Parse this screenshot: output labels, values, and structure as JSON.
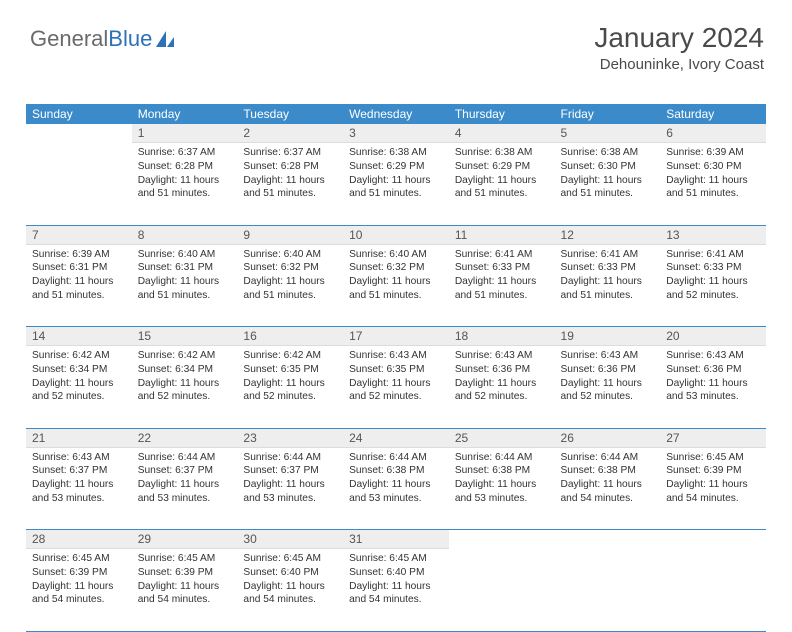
{
  "logo": {
    "text_general": "General",
    "text_blue": "Blue"
  },
  "title": "January 2024",
  "location": "Dehouninke, Ivory Coast",
  "colors": {
    "header_bg": "#3b8bca",
    "header_text": "#ffffff",
    "date_bg": "#eeeeee",
    "text": "#333333",
    "separator": "#3b8bca",
    "page_bg": "#ffffff"
  },
  "day_names": [
    "Sunday",
    "Monday",
    "Tuesday",
    "Wednesday",
    "Thursday",
    "Friday",
    "Saturday"
  ],
  "weeks": [
    [
      {
        "date": "",
        "sunrise": "",
        "sunset": "",
        "daylight1": "",
        "daylight2": ""
      },
      {
        "date": "1",
        "sunrise": "Sunrise: 6:37 AM",
        "sunset": "Sunset: 6:28 PM",
        "daylight1": "Daylight: 11 hours",
        "daylight2": "and 51 minutes."
      },
      {
        "date": "2",
        "sunrise": "Sunrise: 6:37 AM",
        "sunset": "Sunset: 6:28 PM",
        "daylight1": "Daylight: 11 hours",
        "daylight2": "and 51 minutes."
      },
      {
        "date": "3",
        "sunrise": "Sunrise: 6:38 AM",
        "sunset": "Sunset: 6:29 PM",
        "daylight1": "Daylight: 11 hours",
        "daylight2": "and 51 minutes."
      },
      {
        "date": "4",
        "sunrise": "Sunrise: 6:38 AM",
        "sunset": "Sunset: 6:29 PM",
        "daylight1": "Daylight: 11 hours",
        "daylight2": "and 51 minutes."
      },
      {
        "date": "5",
        "sunrise": "Sunrise: 6:38 AM",
        "sunset": "Sunset: 6:30 PM",
        "daylight1": "Daylight: 11 hours",
        "daylight2": "and 51 minutes."
      },
      {
        "date": "6",
        "sunrise": "Sunrise: 6:39 AM",
        "sunset": "Sunset: 6:30 PM",
        "daylight1": "Daylight: 11 hours",
        "daylight2": "and 51 minutes."
      }
    ],
    [
      {
        "date": "7",
        "sunrise": "Sunrise: 6:39 AM",
        "sunset": "Sunset: 6:31 PM",
        "daylight1": "Daylight: 11 hours",
        "daylight2": "and 51 minutes."
      },
      {
        "date": "8",
        "sunrise": "Sunrise: 6:40 AM",
        "sunset": "Sunset: 6:31 PM",
        "daylight1": "Daylight: 11 hours",
        "daylight2": "and 51 minutes."
      },
      {
        "date": "9",
        "sunrise": "Sunrise: 6:40 AM",
        "sunset": "Sunset: 6:32 PM",
        "daylight1": "Daylight: 11 hours",
        "daylight2": "and 51 minutes."
      },
      {
        "date": "10",
        "sunrise": "Sunrise: 6:40 AM",
        "sunset": "Sunset: 6:32 PM",
        "daylight1": "Daylight: 11 hours",
        "daylight2": "and 51 minutes."
      },
      {
        "date": "11",
        "sunrise": "Sunrise: 6:41 AM",
        "sunset": "Sunset: 6:33 PM",
        "daylight1": "Daylight: 11 hours",
        "daylight2": "and 51 minutes."
      },
      {
        "date": "12",
        "sunrise": "Sunrise: 6:41 AM",
        "sunset": "Sunset: 6:33 PM",
        "daylight1": "Daylight: 11 hours",
        "daylight2": "and 51 minutes."
      },
      {
        "date": "13",
        "sunrise": "Sunrise: 6:41 AM",
        "sunset": "Sunset: 6:33 PM",
        "daylight1": "Daylight: 11 hours",
        "daylight2": "and 52 minutes."
      }
    ],
    [
      {
        "date": "14",
        "sunrise": "Sunrise: 6:42 AM",
        "sunset": "Sunset: 6:34 PM",
        "daylight1": "Daylight: 11 hours",
        "daylight2": "and 52 minutes."
      },
      {
        "date": "15",
        "sunrise": "Sunrise: 6:42 AM",
        "sunset": "Sunset: 6:34 PM",
        "daylight1": "Daylight: 11 hours",
        "daylight2": "and 52 minutes."
      },
      {
        "date": "16",
        "sunrise": "Sunrise: 6:42 AM",
        "sunset": "Sunset: 6:35 PM",
        "daylight1": "Daylight: 11 hours",
        "daylight2": "and 52 minutes."
      },
      {
        "date": "17",
        "sunrise": "Sunrise: 6:43 AM",
        "sunset": "Sunset: 6:35 PM",
        "daylight1": "Daylight: 11 hours",
        "daylight2": "and 52 minutes."
      },
      {
        "date": "18",
        "sunrise": "Sunrise: 6:43 AM",
        "sunset": "Sunset: 6:36 PM",
        "daylight1": "Daylight: 11 hours",
        "daylight2": "and 52 minutes."
      },
      {
        "date": "19",
        "sunrise": "Sunrise: 6:43 AM",
        "sunset": "Sunset: 6:36 PM",
        "daylight1": "Daylight: 11 hours",
        "daylight2": "and 52 minutes."
      },
      {
        "date": "20",
        "sunrise": "Sunrise: 6:43 AM",
        "sunset": "Sunset: 6:36 PM",
        "daylight1": "Daylight: 11 hours",
        "daylight2": "and 53 minutes."
      }
    ],
    [
      {
        "date": "21",
        "sunrise": "Sunrise: 6:43 AM",
        "sunset": "Sunset: 6:37 PM",
        "daylight1": "Daylight: 11 hours",
        "daylight2": "and 53 minutes."
      },
      {
        "date": "22",
        "sunrise": "Sunrise: 6:44 AM",
        "sunset": "Sunset: 6:37 PM",
        "daylight1": "Daylight: 11 hours",
        "daylight2": "and 53 minutes."
      },
      {
        "date": "23",
        "sunrise": "Sunrise: 6:44 AM",
        "sunset": "Sunset: 6:37 PM",
        "daylight1": "Daylight: 11 hours",
        "daylight2": "and 53 minutes."
      },
      {
        "date": "24",
        "sunrise": "Sunrise: 6:44 AM",
        "sunset": "Sunset: 6:38 PM",
        "daylight1": "Daylight: 11 hours",
        "daylight2": "and 53 minutes."
      },
      {
        "date": "25",
        "sunrise": "Sunrise: 6:44 AM",
        "sunset": "Sunset: 6:38 PM",
        "daylight1": "Daylight: 11 hours",
        "daylight2": "and 53 minutes."
      },
      {
        "date": "26",
        "sunrise": "Sunrise: 6:44 AM",
        "sunset": "Sunset: 6:38 PM",
        "daylight1": "Daylight: 11 hours",
        "daylight2": "and 54 minutes."
      },
      {
        "date": "27",
        "sunrise": "Sunrise: 6:45 AM",
        "sunset": "Sunset: 6:39 PM",
        "daylight1": "Daylight: 11 hours",
        "daylight2": "and 54 minutes."
      }
    ],
    [
      {
        "date": "28",
        "sunrise": "Sunrise: 6:45 AM",
        "sunset": "Sunset: 6:39 PM",
        "daylight1": "Daylight: 11 hours",
        "daylight2": "and 54 minutes."
      },
      {
        "date": "29",
        "sunrise": "Sunrise: 6:45 AM",
        "sunset": "Sunset: 6:39 PM",
        "daylight1": "Daylight: 11 hours",
        "daylight2": "and 54 minutes."
      },
      {
        "date": "30",
        "sunrise": "Sunrise: 6:45 AM",
        "sunset": "Sunset: 6:40 PM",
        "daylight1": "Daylight: 11 hours",
        "daylight2": "and 54 minutes."
      },
      {
        "date": "31",
        "sunrise": "Sunrise: 6:45 AM",
        "sunset": "Sunset: 6:40 PM",
        "daylight1": "Daylight: 11 hours",
        "daylight2": "and 54 minutes."
      },
      {
        "date": "",
        "sunrise": "",
        "sunset": "",
        "daylight1": "",
        "daylight2": ""
      },
      {
        "date": "",
        "sunrise": "",
        "sunset": "",
        "daylight1": "",
        "daylight2": ""
      },
      {
        "date": "",
        "sunrise": "",
        "sunset": "",
        "daylight1": "",
        "daylight2": ""
      }
    ]
  ]
}
